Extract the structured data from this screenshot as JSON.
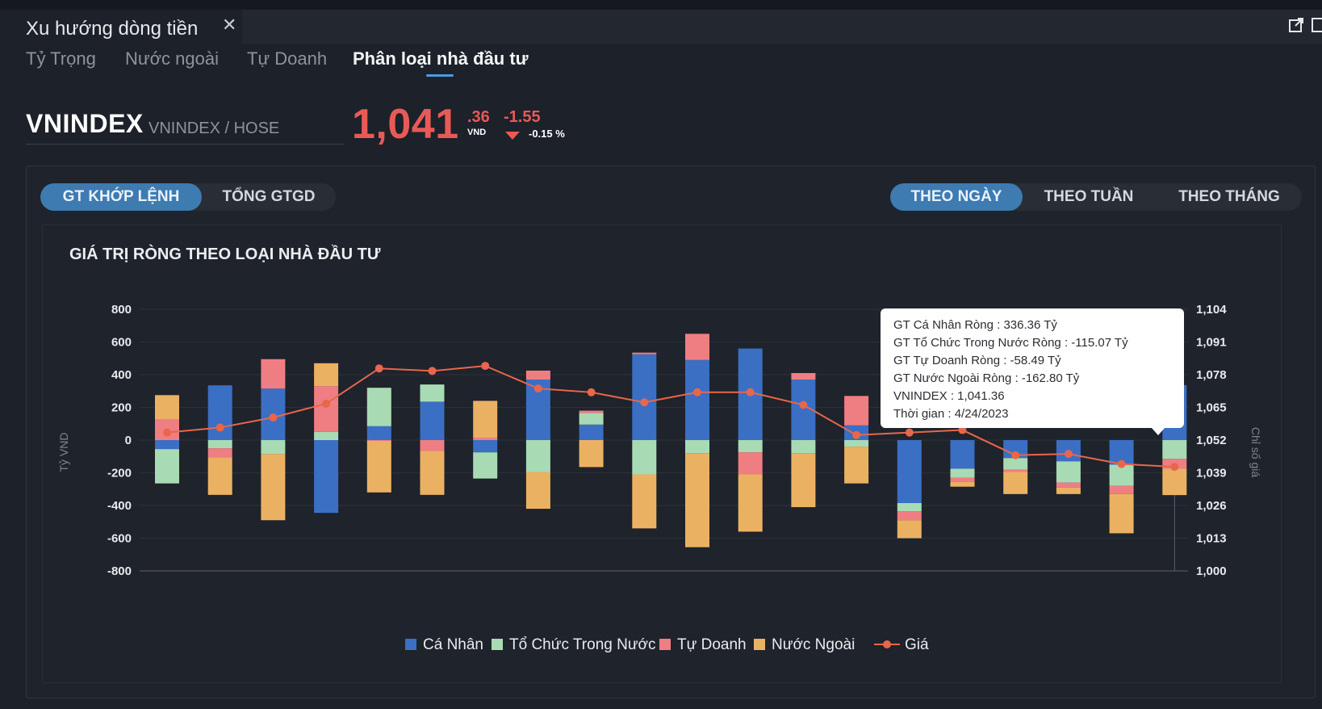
{
  "window": {
    "title": "Xu hướng dòng tiền"
  },
  "tabs": [
    {
      "label": "Tỷ Trọng",
      "active": false
    },
    {
      "label": "Nước ngoài",
      "active": false
    },
    {
      "label": "Tự Doanh",
      "active": false
    },
    {
      "label": "Phân loại nhà đầu tư",
      "active": true
    }
  ],
  "quote": {
    "symbol": "VNINDEX",
    "exchange": "VNINDEX / HOSE",
    "price_int": "1,041",
    "price_dec": ".36",
    "unit": "VND",
    "change": "-1.55",
    "change_pct": "-0.15 %"
  },
  "value_toggle": {
    "options": [
      "GT KHỚP LỆNH",
      "TỔNG GTGD"
    ],
    "selected": "GT KHỚP LỆNH"
  },
  "period_toggle": {
    "options": [
      "THEO NGÀY",
      "THEO TUẦN",
      "THEO THÁNG"
    ],
    "selected": "THEO NGÀY"
  },
  "chart": {
    "title": "GIÁ TRỊ RÒNG THEO LOẠI NHÀ ĐẦU TƯ"
  },
  "chart_data": {
    "type": "bar",
    "stacked": true,
    "ylabel": "Tỷ VND",
    "y2label": "Chỉ số giá",
    "ylim": [
      -800,
      800
    ],
    "y_ticks": [
      800,
      600,
      400,
      200,
      0,
      -200,
      -400,
      -600,
      -800
    ],
    "y2lim": [
      1000,
      1104
    ],
    "y2_ticks": [
      "1,104",
      "1,091",
      "1,078",
      "1,065",
      "1,052",
      "1,039",
      "1,026",
      "1,013",
      "1,000"
    ],
    "grid": true,
    "legend_position": "bottom",
    "series": [
      {
        "name": "Cá Nhân",
        "color": "#3a6fc4",
        "values": [
          -55,
          335,
          315,
          -445,
          85,
          235,
          -75,
          370,
          95,
          525,
          490,
          560,
          370,
          90,
          -385,
          -175,
          -110,
          -130,
          -150,
          336.36
        ]
      },
      {
        "name": "Tổ Chức Trong Nước",
        "color": "#a8dbb4",
        "values": [
          -210,
          -50,
          -85,
          50,
          235,
          105,
          -160,
          -195,
          70,
          -210,
          -80,
          -75,
          -80,
          -40,
          -50,
          -55,
          -70,
          -130,
          -130,
          -115.07
        ]
      },
      {
        "name": "Tự Doanh",
        "color": "#ef7e83",
        "values": [
          125,
          -55,
          180,
          280,
          -5,
          -65,
          15,
          55,
          15,
          10,
          160,
          -135,
          40,
          180,
          -55,
          -25,
          -15,
          -30,
          -50,
          -58.49
        ]
      },
      {
        "name": "Nước Ngoài",
        "color": "#ebb163",
        "values": [
          150,
          -230,
          -405,
          140,
          -315,
          -270,
          225,
          -225,
          -165,
          -330,
          -575,
          -350,
          -330,
          -225,
          -110,
          -30,
          -135,
          -40,
          -240,
          -162.8
        ]
      },
      {
        "name": "Giá",
        "type": "line",
        "axis": "right",
        "color": "#e8664c",
        "values": [
          1055.0,
          1057.0,
          1061.0,
          1066.5,
          1080.5,
          1079.5,
          1081.5,
          1072.5,
          1071.0,
          1067.0,
          1071.0,
          1071.0,
          1066.0,
          1054.0,
          1055.0,
          1056.0,
          1046.0,
          1046.5,
          1042.5,
          1041.36
        ]
      }
    ]
  },
  "tooltip": {
    "lines": [
      "GT Cá Nhân Ròng  : 336.36 Tỷ",
      "GT Tổ Chức Trong Nước Ròng : -115.07 Tỷ",
      "GT Tự Doanh Ròng : -58.49 Tỷ",
      "GT Nước Ngoài Ròng : -162.80 Tỷ",
      "VNINDEX : 1,041.36",
      "Thời gian : 4/24/2023"
    ]
  }
}
